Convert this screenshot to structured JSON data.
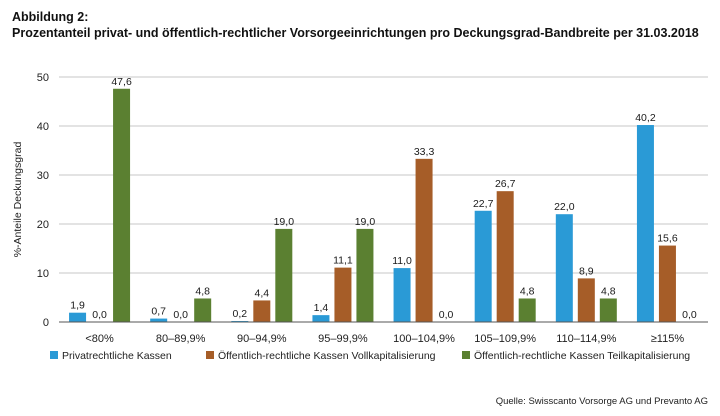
{
  "figure_label": "Abbildung 2:",
  "heading": "Prozentanteil privat- und öffentlich-rechtlicher Vorsorgeeinrichtungen pro Deckungsgrad-Bandbreite per 31.03.2018",
  "source": "Quelle: Swisscanto Vorsorge AG und Prevanto AG",
  "colors": {
    "private": "#2a9ad6",
    "voll": "#a65d28",
    "teil": "#5b8031",
    "grid": "#b5b5b5",
    "axis": "#555555"
  },
  "chart_data": {
    "type": "bar",
    "title": "Prozentanteil privat- und öffentlich-rechtlicher Vorsorgeeinrichtungen pro Deckungsgrad-Bandbreite per 31.03.2018",
    "xlabel": "",
    "ylabel": "%-Anteile Deckungsgrad",
    "ylim": [
      0,
      50
    ],
    "yticks": [
      "0",
      "10",
      "20",
      "30",
      "40",
      "50"
    ],
    "grid": true,
    "legend_position": "bottom",
    "categories": [
      "<80%",
      "80–89,9%",
      "90–94,9%",
      "95–99,9%",
      "100–104,9%",
      "105–109,9%",
      "110–114,9%",
      "≥115%"
    ],
    "series": [
      {
        "name": "Privatrechtliche Kassen",
        "color": "#2a9ad6",
        "values": [
          1.9,
          0.7,
          0.2,
          1.4,
          11.0,
          22.7,
          22.0,
          40.2
        ],
        "labels": [
          "1,9",
          "0,7",
          "0,2",
          "1,4",
          "11,0",
          "22,7",
          "22,0",
          "40,2"
        ]
      },
      {
        "name": "Öffentlich-rechtliche Kassen Vollkapitalisierung",
        "color": "#a65d28",
        "values": [
          0.0,
          0.0,
          4.4,
          11.1,
          33.3,
          26.7,
          8.9,
          15.6
        ],
        "labels": [
          "0,0",
          "0,0",
          "4,4",
          "11,1",
          "33,3",
          "26,7",
          "8,9",
          "15,6"
        ]
      },
      {
        "name": "Öffentlich-rechtliche Kassen Teilkapitalisierung",
        "color": "#5b8031",
        "values": [
          47.6,
          4.8,
          19.0,
          19.0,
          0.0,
          4.8,
          4.8,
          0.0
        ],
        "labels": [
          "47,6",
          "4,8",
          "19,0",
          "19,0",
          "0,0",
          "4,8",
          "4,8",
          "0,0"
        ]
      }
    ]
  }
}
